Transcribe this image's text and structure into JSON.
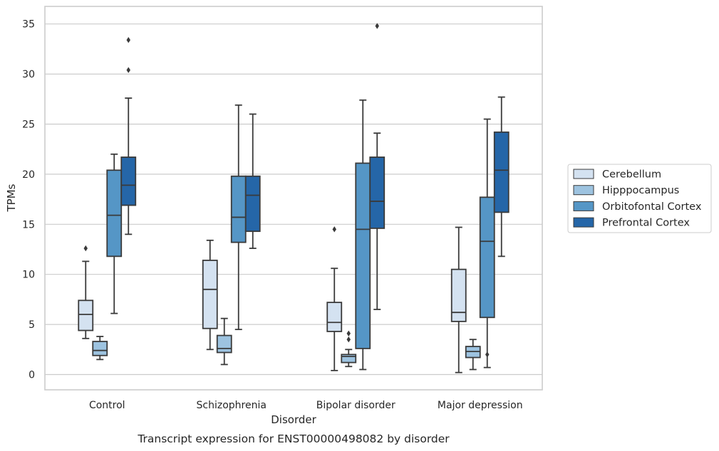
{
  "caption": "Transcript expression for ENST00000498082 by disorder",
  "chart_data": {
    "type": "boxplot",
    "xlabel": "Disorder",
    "ylabel": "TPMs",
    "ylim": [
      -1.5,
      36.5
    ],
    "yticks": [
      0,
      5,
      10,
      15,
      20,
      25,
      30,
      35
    ],
    "grid": "horizontal",
    "legend_position": "right",
    "categories": [
      "Control",
      "Schizophrenia",
      "Bipolar disorder",
      "Major depression"
    ],
    "series": [
      {
        "name": "Cerebellum",
        "color": "#d4e2f1",
        "boxes": [
          {
            "whislo": 3.6,
            "q1": 4.4,
            "med": 6.0,
            "q3": 7.4,
            "whishi": 11.3,
            "fliers": [
              12.6
            ]
          },
          {
            "whislo": 2.5,
            "q1": 4.6,
            "med": 8.5,
            "q3": 11.4,
            "whishi": 13.4,
            "fliers": []
          },
          {
            "whislo": 0.4,
            "q1": 4.3,
            "med": 5.2,
            "q3": 7.2,
            "whishi": 10.6,
            "fliers": [
              14.5
            ]
          },
          {
            "whislo": 0.2,
            "q1": 5.3,
            "med": 6.2,
            "q3": 10.5,
            "whishi": 14.7,
            "fliers": []
          }
        ]
      },
      {
        "name": "Hipppocampus",
        "color": "#9dc3e0",
        "boxes": [
          {
            "whislo": 1.5,
            "q1": 1.9,
            "med": 2.4,
            "q3": 3.3,
            "whishi": 3.8,
            "fliers": []
          },
          {
            "whislo": 1.0,
            "q1": 2.2,
            "med": 2.6,
            "q3": 3.9,
            "whishi": 5.6,
            "fliers": []
          },
          {
            "whislo": 0.8,
            "q1": 1.2,
            "med": 1.8,
            "q3": 2.0,
            "whishi": 2.5,
            "fliers": [
              3.5,
              4.1
            ]
          },
          {
            "whislo": 0.5,
            "q1": 1.7,
            "med": 2.3,
            "q3": 2.8,
            "whishi": 3.5,
            "fliers": []
          }
        ]
      },
      {
        "name": "Orbitofontal Cortex",
        "color": "#5596c6",
        "boxes": [
          {
            "whislo": 6.1,
            "q1": 11.8,
            "med": 15.9,
            "q3": 20.4,
            "whishi": 22.0,
            "fliers": []
          },
          {
            "whislo": 4.5,
            "q1": 13.2,
            "med": 15.7,
            "q3": 19.8,
            "whishi": 26.9,
            "fliers": []
          },
          {
            "whislo": 0.5,
            "q1": 2.6,
            "med": 14.5,
            "q3": 21.1,
            "whishi": 27.4,
            "fliers": []
          },
          {
            "whislo": 0.7,
            "q1": 5.7,
            "med": 13.3,
            "q3": 17.7,
            "whishi": 25.5,
            "fliers": [
              2.0
            ]
          }
        ]
      },
      {
        "name": "Prefrontal Cortex",
        "color": "#2566a8",
        "boxes": [
          {
            "whislo": 14.0,
            "q1": 16.9,
            "med": 18.9,
            "q3": 21.7,
            "whishi": 27.6,
            "fliers": [
              30.4,
              33.4
            ]
          },
          {
            "whislo": 12.6,
            "q1": 14.3,
            "med": 17.9,
            "q3": 19.8,
            "whishi": 26.0,
            "fliers": []
          },
          {
            "whislo": 6.5,
            "q1": 14.6,
            "med": 17.3,
            "q3": 21.7,
            "whishi": 24.1,
            "fliers": [
              34.8
            ]
          },
          {
            "whislo": 11.8,
            "q1": 16.2,
            "med": 20.4,
            "q3": 24.2,
            "whishi": 27.7,
            "fliers": []
          }
        ]
      }
    ]
  }
}
